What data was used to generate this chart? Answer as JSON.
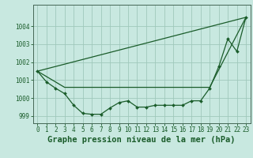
{
  "background_color": "#c8e8e0",
  "grid_color": "#a0c8bc",
  "line_color": "#1a5c2a",
  "marker_color": "#1a5c2a",
  "xlabel": "Graphe pression niveau de la mer (hPa)",
  "ylim": [
    998.6,
    1005.2
  ],
  "xlim": [
    -0.5,
    23.5
  ],
  "yticks": [
    999,
    1000,
    1001,
    1002,
    1003,
    1004
  ],
  "xticks": [
    0,
    1,
    2,
    3,
    4,
    5,
    6,
    7,
    8,
    9,
    10,
    11,
    12,
    13,
    14,
    15,
    16,
    17,
    18,
    19,
    20,
    21,
    22,
    23
  ],
  "line1_x": [
    0,
    1,
    2,
    3,
    4,
    5,
    6,
    7,
    8,
    9,
    10,
    11,
    12,
    13,
    14,
    15,
    16,
    17,
    18,
    19,
    20,
    21,
    22,
    23
  ],
  "line1_y": [
    1001.5,
    1000.9,
    1000.55,
    1000.25,
    999.6,
    999.15,
    999.1,
    999.1,
    999.45,
    999.75,
    999.85,
    999.5,
    999.5,
    999.6,
    999.6,
    999.6,
    999.6,
    999.85,
    999.85,
    1000.55,
    1001.75,
    1003.3,
    1002.6,
    1004.5
  ],
  "line2_x": [
    0,
    23
  ],
  "line2_y": [
    1001.5,
    1004.5
  ],
  "line3_x": [
    0,
    3,
    19,
    23
  ],
  "line3_y": [
    1001.5,
    1000.6,
    1000.6,
    1004.5
  ],
  "title_fontsize": 7.5,
  "tick_fontsize": 5.5
}
